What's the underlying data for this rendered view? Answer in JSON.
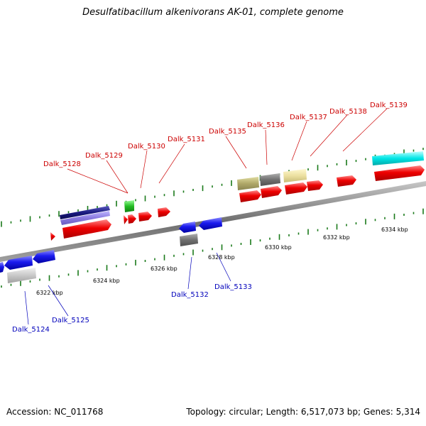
{
  "title": "Desulfatibacillum alkenivorans AK-01, complete genome",
  "footer": {
    "accession": "Accession: NC_011768",
    "summary": "Topology: circular; Length: 6,517,073 bp; Genes: 5,314"
  },
  "scale_labels": [
    "6322 kbp",
    "6324 kbp",
    "6326 kbp",
    "6328 kbp",
    "6330 kbp",
    "6332 kbp",
    "6334 kbp"
  ],
  "genes_top": [
    "Dalk_5128",
    "Dalk_5129",
    "Dalk_5130",
    "Dalk_5131",
    "Dalk_5135",
    "Dalk_5136",
    "Dalk_5137",
    "Dalk_5138",
    "Dalk_5139"
  ],
  "genes_bottom": [
    "Dalk_5124",
    "Dalk_5125",
    "Dalk_5132",
    "Dalk_5133"
  ],
  "colors": {
    "forward_cds": "#ee0000",
    "reverse_cds": "#1a1aee",
    "top_label": "#cc0000",
    "bottom_label": "#0000bb",
    "tick": "#1a7a1a",
    "backbone": "#808080"
  }
}
